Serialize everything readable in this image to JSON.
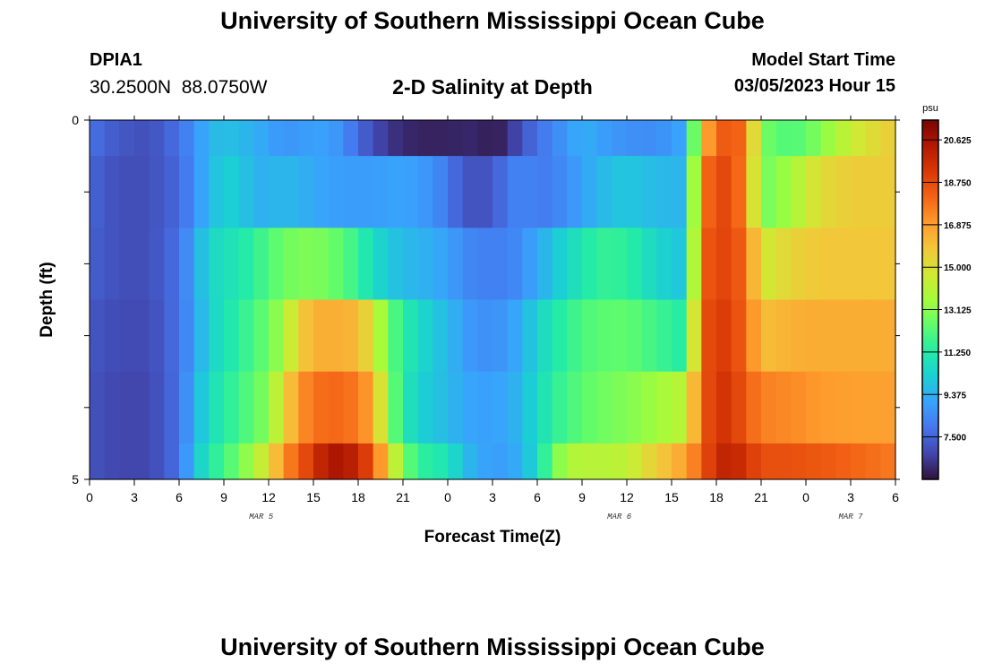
{
  "header": {
    "title": "University of Southern Mississippi Ocean Cube",
    "station": "DPIA1",
    "coordinates": "30.2500N  88.0750W",
    "subtitle": "2-D Salinity at Depth",
    "model_start_label": "Model Start Time",
    "model_start_value": "03/05/2023 Hour 15"
  },
  "footer": {
    "title": "University of Southern Mississippi Ocean Cube"
  },
  "colors": {
    "colormap": [
      "#30123b",
      "#4145ab",
      "#4675ed",
      "#39a2fc",
      "#1bcfd4",
      "#24eca6",
      "#61fc6c",
      "#a4fc3b",
      "#d1e834",
      "#f3c63a",
      "#fe9b2d",
      "#f36315",
      "#d93806",
      "#b11901",
      "#7a0403"
    ]
  },
  "chart_data": {
    "type": "heatmap",
    "title": "2-D Salinity at Depth",
    "xlabel": "Forecast Time(Z)",
    "ylabel": "Depth (ft)",
    "x_tick_labels": [
      "0",
      "3",
      "6",
      "9",
      "12",
      "15",
      "18",
      "21",
      "0",
      "3",
      "6",
      "9",
      "12",
      "15",
      "18",
      "21",
      "0",
      "3",
      "6"
    ],
    "x_range_hours": [
      0,
      54
    ],
    "x_step_hours": 1,
    "date_labels": [
      {
        "text": "MAR 5",
        "hour": 11.5
      },
      {
        "text": "MAR 6",
        "hour": 35.5
      },
      {
        "text": "MAR 7",
        "hour": 51
      }
    ],
    "y_tick_labels": [
      "0",
      "5"
    ],
    "ylim": [
      0,
      5
    ],
    "depth_levels": 5,
    "colorbar": {
      "unit": "psu",
      "min": 5.625,
      "max": 21.5,
      "labels": [
        "20.625",
        "18.750",
        "16.875",
        "15.000",
        "13.125",
        "11.250",
        "9.375",
        "7.500"
      ]
    },
    "profiles": {
      "x": [
        0,
        2,
        4,
        6,
        7,
        8,
        9,
        10,
        11,
        12,
        13,
        14,
        15,
        16,
        17,
        18,
        19,
        20,
        21,
        22,
        23,
        24,
        25,
        26,
        27,
        28,
        29,
        30,
        31,
        32,
        33,
        34,
        36,
        38,
        40,
        41,
        42,
        43,
        44,
        45,
        47,
        49,
        51,
        54
      ],
      "rows": [
        [
          7.8,
          7.2,
          7.0,
          7.8,
          8.6,
          9.5,
          9.8,
          9.6,
          9.4,
          9.0,
          8.7,
          8.8,
          9.0,
          9.0,
          8.5,
          7.6,
          7.0,
          6.4,
          6.2,
          6.0,
          6.0,
          6.0,
          6.1,
          6.1,
          5.8,
          6.2,
          7.2,
          7.8,
          8.3,
          8.8,
          9.4,
          9.0,
          8.6,
          8.5,
          9.2,
          16.0,
          18.0,
          18.6,
          17.6,
          12.8,
          12.0,
          13.0,
          14.5,
          15.7
        ],
        [
          7.5,
          7.0,
          7.0,
          7.6,
          8.5,
          9.6,
          10.2,
          10.1,
          9.4,
          9.4,
          9.6,
          9.4,
          9.2,
          9.0,
          8.9,
          8.9,
          8.9,
          9.0,
          9.1,
          8.9,
          8.6,
          8.0,
          7.2,
          7.0,
          7.2,
          8.0,
          8.4,
          8.0,
          8.2,
          8.6,
          9.0,
          9.5,
          10.0,
          9.6,
          9.5,
          17.5,
          18.8,
          18.8,
          17.2,
          12.6,
          13.6,
          15.2,
          15.6,
          15.6
        ],
        [
          7.4,
          7.0,
          7.0,
          7.8,
          9.1,
          10.4,
          10.8,
          11.0,
          11.5,
          12.1,
          12.6,
          12.9,
          12.9,
          12.7,
          12.2,
          11.6,
          10.6,
          10.0,
          9.6,
          9.5,
          9.3,
          9.0,
          8.5,
          8.2,
          8.2,
          8.2,
          8.6,
          9.2,
          9.8,
          10.5,
          11.0,
          11.6,
          11.5,
          10.4,
          9.8,
          18.0,
          19.0,
          18.7,
          18.0,
          14.5,
          15.4,
          15.8,
          15.8,
          15.8
        ],
        [
          7.2,
          6.9,
          6.9,
          7.8,
          9.0,
          10.2,
          10.9,
          11.4,
          12.0,
          12.6,
          13.6,
          15.5,
          16.4,
          16.5,
          16.4,
          16.2,
          14.8,
          12.6,
          11.4,
          10.6,
          10.0,
          9.6,
          9.0,
          8.6,
          8.6,
          8.8,
          9.4,
          10.3,
          11.0,
          11.6,
          12.0,
          12.3,
          12.4,
          11.8,
          11.2,
          18.3,
          19.2,
          19.0,
          18.0,
          16.0,
          16.4,
          16.5,
          16.5,
          16.5
        ],
        [
          7.1,
          6.8,
          6.8,
          7.8,
          9.3,
          10.6,
          11.3,
          11.8,
          12.4,
          13.1,
          15.2,
          17.0,
          17.8,
          18.0,
          18.0,
          17.6,
          16.6,
          13.2,
          11.2,
          10.3,
          9.9,
          9.6,
          9.2,
          9.0,
          9.0,
          9.2,
          9.6,
          10.6,
          11.4,
          11.9,
          12.3,
          12.6,
          13.0,
          13.5,
          14.2,
          18.2,
          19.4,
          19.4,
          18.2,
          17.5,
          17.3,
          17.0,
          16.8,
          16.8
        ],
        [
          7.1,
          6.8,
          6.8,
          7.8,
          9.8,
          11.1,
          11.9,
          12.6,
          13.8,
          15.0,
          17.2,
          18.2,
          19.4,
          20.4,
          20.5,
          19.8,
          18.4,
          15.6,
          12.8,
          11.6,
          11.2,
          11.0,
          9.8,
          9.2,
          8.9,
          9.0,
          9.4,
          10.6,
          12.5,
          13.8,
          14.1,
          14.0,
          14.2,
          15.6,
          16.8,
          18.2,
          19.8,
          20.0,
          19.4,
          18.6,
          18.6,
          18.4,
          18.1,
          17.6
        ]
      ]
    }
  }
}
